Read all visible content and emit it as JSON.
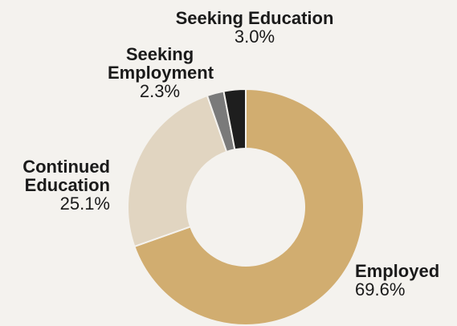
{
  "chart_data": {
    "type": "pie",
    "donut": true,
    "slices": [
      {
        "label_lines": [
          "Employed"
        ],
        "percent_text": "69.6%",
        "value": 69.6,
        "color": "#d1ad70"
      },
      {
        "label_lines": [
          "Continued",
          "Education"
        ],
        "percent_text": "25.1%",
        "value": 25.1,
        "color": "#e1d5c1"
      },
      {
        "label_lines": [
          "Seeking",
          "Employment"
        ],
        "percent_text": "2.3%",
        "value": 2.3,
        "color": "#7a7a7a"
      },
      {
        "label_lines": [
          "Seeking Education"
        ],
        "percent_text": "3.0%",
        "value": 3.0,
        "color": "#1e1e1e"
      }
    ]
  },
  "background": "#f4f2ee"
}
